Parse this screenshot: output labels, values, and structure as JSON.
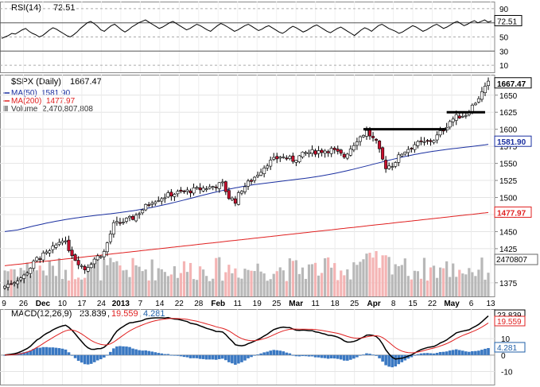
{
  "chart_data": {
    "type": "candlestick",
    "panels": {
      "rsi": {
        "label": "RSI(14)",
        "value": "72.51",
        "ticks": [
          "90",
          "70",
          "50",
          "30",
          "10"
        ],
        "ylim": [
          0,
          100
        ],
        "series": [
          48,
          50,
          52,
          55,
          54,
          57,
          60,
          62,
          58,
          55,
          53,
          50,
          52,
          56,
          60,
          63,
          61,
          58,
          55,
          52,
          50,
          53,
          57,
          62,
          66,
          70,
          72,
          69,
          65,
          60,
          58,
          62,
          66,
          68,
          64,
          60,
          57,
          60,
          64,
          67,
          70,
          72,
          74,
          71,
          68,
          65,
          62,
          64,
          67,
          70,
          72,
          69,
          66,
          63,
          60,
          62,
          65,
          68,
          66,
          63,
          60,
          58,
          62,
          66,
          69,
          67,
          64,
          61,
          58,
          60,
          63,
          66,
          68,
          65,
          62,
          59,
          61,
          64,
          66,
          63,
          60,
          57,
          55,
          58,
          62,
          65,
          63,
          60,
          57,
          59,
          62,
          65,
          67,
          64,
          61,
          58,
          56,
          59,
          62,
          64,
          61,
          58,
          55,
          52,
          56,
          60,
          63,
          61,
          58,
          62,
          66,
          68,
          65,
          62,
          60,
          58,
          55,
          57,
          60,
          63,
          66,
          64,
          61,
          58,
          60,
          63,
          66,
          68,
          65,
          62,
          64,
          67,
          70,
          72,
          69,
          66,
          68,
          71,
          73,
          70,
          72,
          74,
          71,
          72.51
        ]
      },
      "price": {
        "title": "$SPX (Daily)",
        "last": "1667.47",
        "ma50": {
          "label": "MA(50)",
          "value": "1581.90",
          "color": "#1a2fa0"
        },
        "ma200": {
          "label": "MA(200)",
          "value": "1477.97",
          "color": "#e02020"
        },
        "volume": {
          "label": "Volume",
          "value": "2,470,807,808",
          "axis_label": "2470807"
        },
        "ticks": [
          "1650",
          "1625",
          "1600",
          "1575",
          "1550",
          "1525",
          "1500",
          "1475",
          "1450",
          "1425",
          "1375"
        ],
        "ylim": [
          1355,
          1680
        ],
        "resistance_lines": [
          {
            "level": 1600,
            "from_index": 112,
            "to_index": 138
          },
          {
            "level": 1625,
            "from_index": 138,
            "to_index": 150
          }
        ],
        "x_labels": [
          "9",
          "26",
          "Dec",
          "10",
          "17",
          "24",
          "2013",
          "7",
          "14",
          "22",
          "28",
          "Feb",
          "11",
          "19",
          "25",
          "Mar",
          "11",
          "18",
          "25",
          "Apr",
          "8",
          "15",
          "22",
          "May",
          "6",
          "13"
        ]
      },
      "macd": {
        "label": "MACD(12,26,9)",
        "macd": "23.839",
        "signal": "19.559",
        "histogram": "4.281",
        "ticks": [
          "10",
          "0",
          "-10"
        ],
        "ylim": [
          -18,
          28
        ]
      }
    }
  }
}
